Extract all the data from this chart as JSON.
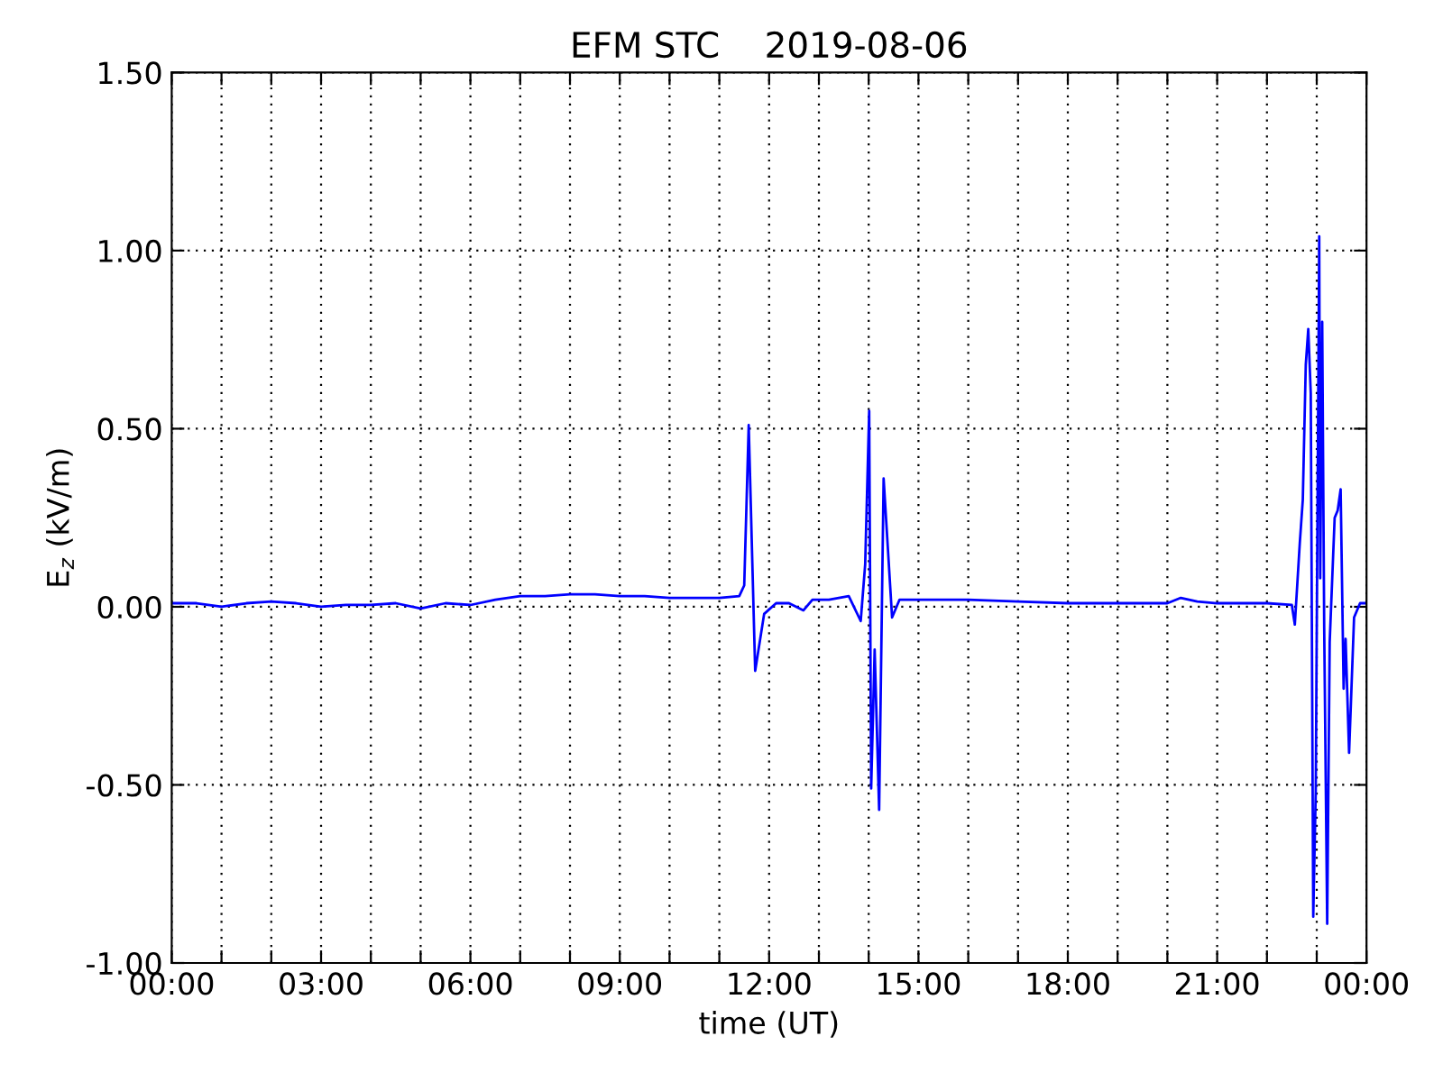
{
  "chart_data": {
    "type": "line",
    "title": "EFM STC    2019-08-06",
    "xlabel": "time (UT)",
    "ylabel": "E$_{z}$ (kV/m)",
    "x": [
      0,
      0.5,
      1,
      1.5,
      2,
      2.5,
      3,
      3.5,
      4,
      4.5,
      5,
      5.5,
      6,
      6.5,
      7,
      7.5,
      8,
      8.5,
      9,
      9.5,
      10,
      10.5,
      11,
      11.4,
      11.5,
      11.59,
      11.72,
      11.9,
      12.14,
      12.4,
      12.69,
      12.87,
      13.2,
      13.6,
      13.84,
      13.93,
      14.01,
      14.05,
      14.12,
      14.21,
      14.3,
      14.47,
      14.62,
      15,
      16,
      17,
      18,
      19,
      20,
      20.27,
      20.6,
      21,
      22,
      22.5,
      22.56,
      22.66,
      22.72,
      22.78,
      22.83,
      22.88,
      22.93,
      22.98,
      23.05,
      23.07,
      23.11,
      23.15,
      23.21,
      23.26,
      23.36,
      23.42,
      23.48,
      23.54,
      23.58,
      23.65,
      23.75,
      23.87,
      24
    ],
    "series": [
      {
        "color": "#0000ff",
        "values": [
          0.01,
          0.01,
          0.0,
          0.01,
          0.015,
          0.01,
          0.0,
          0.005,
          0.005,
          0.01,
          -0.005,
          0.01,
          0.005,
          0.02,
          0.03,
          0.03,
          0.035,
          0.035,
          0.03,
          0.03,
          0.025,
          0.025,
          0.025,
          0.03,
          0.06,
          0.51,
          -0.18,
          -0.02,
          0.01,
          0.01,
          -0.01,
          0.02,
          0.02,
          0.03,
          -0.04,
          0.12,
          0.55,
          -0.51,
          -0.12,
          -0.57,
          0.36,
          -0.03,
          0.02,
          0.02,
          0.02,
          0.015,
          0.01,
          0.01,
          0.01,
          0.025,
          0.015,
          0.01,
          0.01,
          0.005,
          -0.05,
          0.18,
          0.3,
          0.68,
          0.78,
          0.6,
          -0.87,
          -0.52,
          1.04,
          0.08,
          0.8,
          -0.06,
          -0.89,
          -0.1,
          0.25,
          0.27,
          0.33,
          -0.23,
          -0.09,
          -0.41,
          -0.03,
          0.01,
          0.01
        ]
      }
    ],
    "xlim": [
      0,
      24
    ],
    "ylim": [
      -1.0,
      1.5
    ],
    "xticks": [
      {
        "value": 0,
        "label": "00:00"
      },
      {
        "value": 1,
        "label": null
      },
      {
        "value": 2,
        "label": null
      },
      {
        "value": 3,
        "label": "03:00"
      },
      {
        "value": 4,
        "label": null
      },
      {
        "value": 5,
        "label": null
      },
      {
        "value": 6,
        "label": "06:00"
      },
      {
        "value": 7,
        "label": null
      },
      {
        "value": 8,
        "label": null
      },
      {
        "value": 9,
        "label": "09:00"
      },
      {
        "value": 10,
        "label": null
      },
      {
        "value": 11,
        "label": null
      },
      {
        "value": 12,
        "label": "12:00"
      },
      {
        "value": 13,
        "label": null
      },
      {
        "value": 14,
        "label": null
      },
      {
        "value": 15,
        "label": "15:00"
      },
      {
        "value": 16,
        "label": null
      },
      {
        "value": 17,
        "label": null
      },
      {
        "value": 18,
        "label": "18:00"
      },
      {
        "value": 19,
        "label": null
      },
      {
        "value": 20,
        "label": null
      },
      {
        "value": 21,
        "label": "21:00"
      },
      {
        "value": 22,
        "label": null
      },
      {
        "value": 23,
        "label": null
      },
      {
        "value": 24,
        "label": "00:00"
      }
    ],
    "yticks": [
      {
        "value": -1.0,
        "label": "-1.00"
      },
      {
        "value": -0.5,
        "label": "-0.50"
      },
      {
        "value": 0.0,
        "label": "0.00"
      },
      {
        "value": 0.5,
        "label": "0.50"
      },
      {
        "value": 1.0,
        "label": "1.00"
      },
      {
        "value": 1.5,
        "label": "1.50"
      }
    ],
    "grid": true
  }
}
